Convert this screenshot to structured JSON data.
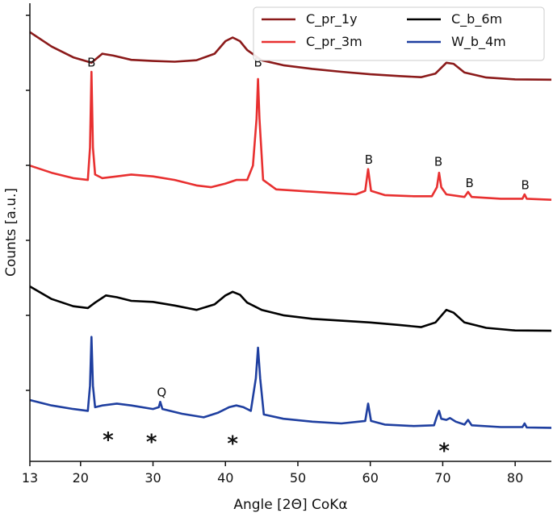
{
  "chart_data": {
    "type": "line",
    "xlabel": "Angle [2Θ] CoKα",
    "ylabel": "Counts [a.u.]",
    "xlim": [
      13,
      85
    ],
    "xticks": [
      13,
      20,
      30,
      40,
      50,
      60,
      70,
      80
    ],
    "yticks_labeled": false,
    "legend": {
      "placement": "top-right",
      "columns": 2
    },
    "legend_order": [
      "C_pr_1y",
      "C_pr_3m",
      "C_b_6m",
      "W_b_4m"
    ],
    "series": [
      {
        "name": "C_pr_1y",
        "color": "#8b1a1a",
        "points": [
          [
            13,
            1.54
          ],
          [
            16,
            1.5
          ],
          [
            19,
            1.47
          ],
          [
            21.5,
            1.455
          ],
          [
            23,
            1.48
          ],
          [
            24.5,
            1.475
          ],
          [
            27,
            1.463
          ],
          [
            30,
            1.46
          ],
          [
            33,
            1.458
          ],
          [
            36,
            1.462
          ],
          [
            38.5,
            1.48
          ],
          [
            40,
            1.515
          ],
          [
            41,
            1.525
          ],
          [
            42,
            1.515
          ],
          [
            43,
            1.49
          ],
          [
            45,
            1.462
          ],
          [
            48,
            1.448
          ],
          [
            52,
            1.438
          ],
          [
            56,
            1.43
          ],
          [
            60,
            1.423
          ],
          [
            64,
            1.418
          ],
          [
            67,
            1.415
          ],
          [
            69,
            1.425
          ],
          [
            70.5,
            1.455
          ],
          [
            71.5,
            1.452
          ],
          [
            73,
            1.428
          ],
          [
            76,
            1.414
          ],
          [
            80,
            1.409
          ],
          [
            85,
            1.408
          ]
        ]
      },
      {
        "name": "C_pr_3m",
        "color": "#e83030",
        "points": [
          [
            13,
            1.17
          ],
          [
            16,
            1.15
          ],
          [
            19,
            1.135
          ],
          [
            21,
            1.13
          ],
          [
            21.3,
            1.22
          ],
          [
            21.5,
            1.43
          ],
          [
            21.7,
            1.22
          ],
          [
            22,
            1.145
          ],
          [
            23,
            1.135
          ],
          [
            25,
            1.14
          ],
          [
            27,
            1.145
          ],
          [
            30,
            1.14
          ],
          [
            33,
            1.13
          ],
          [
            36,
            1.115
          ],
          [
            38,
            1.11
          ],
          [
            40,
            1.12
          ],
          [
            41.5,
            1.13
          ],
          [
            43,
            1.13
          ],
          [
            43.8,
            1.17
          ],
          [
            44.3,
            1.3
          ],
          [
            44.5,
            1.41
          ],
          [
            44.7,
            1.3
          ],
          [
            45.2,
            1.13
          ],
          [
            47,
            1.104
          ],
          [
            50,
            1.1
          ],
          [
            54,
            1.095
          ],
          [
            58,
            1.09
          ],
          [
            59.3,
            1.1
          ],
          [
            59.7,
            1.16
          ],
          [
            60.1,
            1.1
          ],
          [
            62,
            1.088
          ],
          [
            66,
            1.085
          ],
          [
            68.5,
            1.085
          ],
          [
            69.2,
            1.11
          ],
          [
            69.5,
            1.15
          ],
          [
            69.8,
            1.11
          ],
          [
            70.5,
            1.09
          ],
          [
            73,
            1.083
          ],
          [
            73.5,
            1.097
          ],
          [
            74,
            1.083
          ],
          [
            78,
            1.078
          ],
          [
            81,
            1.078
          ],
          [
            81.3,
            1.09
          ],
          [
            81.6,
            1.078
          ],
          [
            85,
            1.075
          ]
        ]
      },
      {
        "name": "C_b_6m",
        "color": "#000000",
        "points": [
          [
            13,
            0.835
          ],
          [
            16,
            0.8
          ],
          [
            19,
            0.78
          ],
          [
            21,
            0.775
          ],
          [
            22,
            0.79
          ],
          [
            23.5,
            0.81
          ],
          [
            25,
            0.805
          ],
          [
            27,
            0.795
          ],
          [
            30,
            0.792
          ],
          [
            33,
            0.782
          ],
          [
            36,
            0.77
          ],
          [
            38.5,
            0.785
          ],
          [
            40,
            0.81
          ],
          [
            41,
            0.82
          ],
          [
            42,
            0.812
          ],
          [
            43,
            0.79
          ],
          [
            45,
            0.77
          ],
          [
            48,
            0.755
          ],
          [
            52,
            0.745
          ],
          [
            56,
            0.74
          ],
          [
            60,
            0.735
          ],
          [
            64,
            0.728
          ],
          [
            67,
            0.722
          ],
          [
            69,
            0.735
          ],
          [
            70.5,
            0.77
          ],
          [
            71.5,
            0.762
          ],
          [
            73,
            0.735
          ],
          [
            76,
            0.72
          ],
          [
            80,
            0.713
          ],
          [
            85,
            0.712
          ]
        ]
      },
      {
        "name": "W_b_4m",
        "color": "#1f3fa0",
        "points": [
          [
            13,
            0.52
          ],
          [
            16,
            0.505
          ],
          [
            19,
            0.495
          ],
          [
            21,
            0.49
          ],
          [
            21.3,
            0.56
          ],
          [
            21.5,
            0.695
          ],
          [
            21.7,
            0.56
          ],
          [
            22,
            0.5
          ],
          [
            23,
            0.505
          ],
          [
            25,
            0.51
          ],
          [
            27,
            0.505
          ],
          [
            30,
            0.495
          ],
          [
            30.8,
            0.5
          ],
          [
            31,
            0.515
          ],
          [
            31.3,
            0.495
          ],
          [
            34,
            0.482
          ],
          [
            37,
            0.472
          ],
          [
            39,
            0.485
          ],
          [
            40.5,
            0.5
          ],
          [
            41.5,
            0.505
          ],
          [
            42.5,
            0.5
          ],
          [
            43.5,
            0.49
          ],
          [
            44.2,
            0.58
          ],
          [
            44.5,
            0.665
          ],
          [
            44.8,
            0.58
          ],
          [
            45.3,
            0.48
          ],
          [
            48,
            0.468
          ],
          [
            52,
            0.46
          ],
          [
            56,
            0.455
          ],
          [
            59.3,
            0.462
          ],
          [
            59.7,
            0.51
          ],
          [
            60.1,
            0.462
          ],
          [
            62,
            0.452
          ],
          [
            66,
            0.448
          ],
          [
            68.8,
            0.45
          ],
          [
            69.2,
            0.475
          ],
          [
            69.5,
            0.49
          ],
          [
            69.8,
            0.468
          ],
          [
            70.5,
            0.465
          ],
          [
            71,
            0.47
          ],
          [
            71.8,
            0.46
          ],
          [
            73,
            0.452
          ],
          [
            73.5,
            0.465
          ],
          [
            74,
            0.45
          ],
          [
            78,
            0.445
          ],
          [
            81,
            0.445
          ],
          [
            81.3,
            0.455
          ],
          [
            81.6,
            0.444
          ],
          [
            85,
            0.443
          ]
        ]
      }
    ],
    "annotations": [
      {
        "text": "B",
        "x": 21.5,
        "y": 1.445
      },
      {
        "text": "B",
        "x": 44.5,
        "y": 1.445
      },
      {
        "text": "B",
        "x": 59.8,
        "y": 1.175
      },
      {
        "text": "B",
        "x": 69.4,
        "y": 1.17
      },
      {
        "text": "B",
        "x": 73.7,
        "y": 1.11
      },
      {
        "text": "B",
        "x": 81.4,
        "y": 1.105
      },
      {
        "text": "Q",
        "x": 31.2,
        "y": 0.53
      },
      {
        "text": "*",
        "x": 23.8,
        "y": 0.43
      },
      {
        "text": "*",
        "x": 29.8,
        "y": 0.425
      },
      {
        "text": "*",
        "x": 41.0,
        "y": 0.42
      },
      {
        "text": "*",
        "x": 70.2,
        "y": 0.4
      }
    ]
  }
}
